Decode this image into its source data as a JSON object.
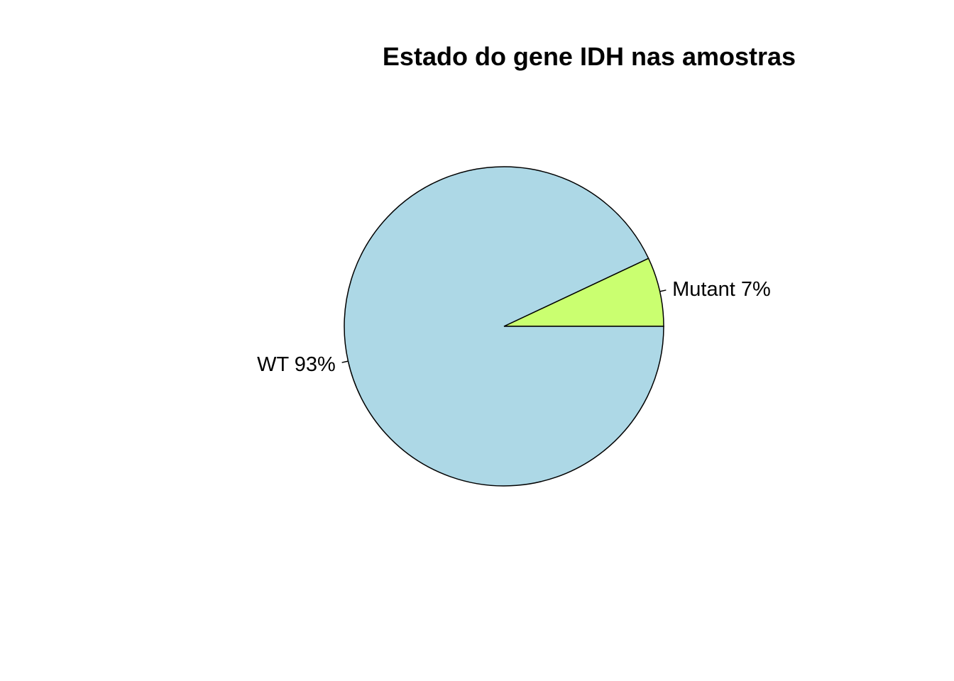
{
  "chart_data": {
    "type": "pie",
    "title": "Estado do gene IDH nas amostras",
    "start_angle_deg": 0,
    "direction": "counterclockwise",
    "slices": [
      {
        "category": "Mutant",
        "value": 7,
        "label": "Mutant 7%",
        "color": "#CAFF70"
      },
      {
        "category": "WT",
        "value": 93,
        "label": "WT 93%",
        "color": "#ADD8E6"
      }
    ]
  },
  "colors": {
    "background": "#FFFFFF",
    "outline": "#000000"
  }
}
